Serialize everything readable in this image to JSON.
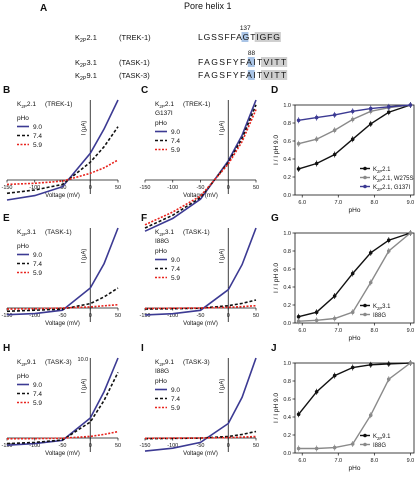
{
  "figure": {
    "panel_a": {
      "letter": "A",
      "title": "Pore helix 1",
      "rows": [
        {
          "channel": "K2P2.1",
          "name": "(TREK-1)",
          "seq_pre": "LGSSFFA",
          "seq_hl": "G",
          "seq_post": "T",
          "seq_box": "IGFG",
          "residue": "137"
        },
        {
          "channel": "K2P3.1",
          "name": "(TASK-1)",
          "seq_pre": "FAGSFYFA",
          "seq_hl": "I",
          "seq_post": "T",
          "seq_box": "VITT",
          "residue": "88"
        },
        {
          "channel": "K2P9.1",
          "name": "(TASK-3)",
          "seq_pre": "FAGSFYFA",
          "seq_hl": "I",
          "seq_post": "T",
          "seq_box": "VITT",
          "residue": ""
        }
      ]
    },
    "colors": {
      "ph9": "#3c3a93",
      "ph74": "#111111",
      "ph59": "#e8231d",
      "wt_line": "#111111",
      "mut_gray": "#8a8a8a",
      "mut_blue": "#3c3a93",
      "highlight": "#a9c4e6",
      "box": "#cfcfcf"
    },
    "legend_ph": {
      "title": "pHo",
      "items": [
        "9.0",
        "7.4",
        "5.9"
      ]
    },
    "iv_panels": [
      {
        "id": "B",
        "title": "K2P2.1 (TREK-1)",
        "subtitle": "",
        "ymax_label": ""
      },
      {
        "id": "C",
        "title": "K2P2.1 (TREK-1)",
        "subtitle": "G137I",
        "ymax_label": ""
      },
      {
        "id": "E",
        "title": "K2P3.1 (TASK-1)",
        "subtitle": "",
        "ymax_label": ""
      },
      {
        "id": "F",
        "title": "K2P3.1 (TASK-1)",
        "subtitle": "I88G",
        "ymax_label": ""
      },
      {
        "id": "H",
        "title": "K2P9.1 (TASK-3)",
        "subtitle": "",
        "ymax_label": "10.0"
      },
      {
        "id": "I",
        "title": "K2P9.1 (TASK-3)",
        "subtitle": "I88G",
        "ymax_label": ""
      }
    ],
    "iv_axis": {
      "xlabel": "Voltage (mV)",
      "ylabel": "I (μA)",
      "xticks": [
        "-150",
        "-100",
        "-50",
        "0",
        "50"
      ]
    },
    "ph_axis": {
      "xlabel": "pHo",
      "ylabel": "I / I pH 9.0",
      "xticks": [
        "6.0",
        "7.0",
        "8.0",
        "9.0"
      ],
      "yticks": [
        "0.0",
        "0.2",
        "0.4",
        "0.6",
        "0.8",
        "1.0"
      ]
    }
  },
  "chart_data": [
    {
      "panel": "B",
      "type": "line",
      "xlabel": "Voltage (mV)",
      "ylabel": "I (μA)",
      "xlim": [
        -150,
        50
      ],
      "series": [
        {
          "name": "9.0",
          "x": [
            -150,
            -100,
            -50,
            0,
            25,
            50
          ],
          "y": [
            -0.9,
            -0.7,
            -0.3,
            1.2,
            2.3,
            3.6
          ]
        },
        {
          "name": "7.4",
          "x": [
            -150,
            -100,
            -50,
            0,
            25,
            50
          ],
          "y": [
            -0.6,
            -0.45,
            -0.2,
            0.8,
            1.5,
            2.4
          ]
        },
        {
          "name": "5.9",
          "x": [
            -150,
            -100,
            -50,
            0,
            25,
            50
          ],
          "y": [
            -0.2,
            -0.15,
            -0.05,
            0.3,
            0.55,
            0.9
          ]
        }
      ]
    },
    {
      "panel": "C",
      "type": "line",
      "xlabel": "Voltage (mV)",
      "ylabel": "I (μA)",
      "xlim": [
        -150,
        50
      ],
      "series": [
        {
          "name": "9.0",
          "x": [
            -150,
            -100,
            -50,
            0,
            25,
            50
          ],
          "y": [
            -1.6,
            -1.2,
            -0.6,
            0.6,
            1.4,
            2.5
          ]
        },
        {
          "name": "7.4",
          "x": [
            -150,
            -100,
            -50,
            0,
            25,
            50
          ],
          "y": [
            -1.5,
            -1.1,
            -0.55,
            0.55,
            1.3,
            2.35
          ]
        },
        {
          "name": "5.9",
          "x": [
            -150,
            -100,
            -50,
            0,
            25,
            50
          ],
          "y": [
            -1.4,
            -1.0,
            -0.5,
            0.5,
            1.2,
            2.2
          ]
        }
      ]
    },
    {
      "panel": "D",
      "type": "line",
      "xlabel": "pHo",
      "ylabel": "I / I pH 9.0",
      "xlim": [
        5.8,
        9.1
      ],
      "ylim": [
        0,
        1.0
      ],
      "series": [
        {
          "name": "K2P2.1",
          "x": [
            5.9,
            6.4,
            6.9,
            7.4,
            7.9,
            8.4,
            9.0
          ],
          "y": [
            0.29,
            0.35,
            0.45,
            0.62,
            0.79,
            0.92,
            1.0
          ]
        },
        {
          "name": "K2P2.1, W275S",
          "x": [
            5.9,
            6.4,
            6.9,
            7.4,
            7.9,
            8.4,
            9.0
          ],
          "y": [
            0.57,
            0.62,
            0.72,
            0.84,
            0.93,
            0.97,
            1.0
          ]
        },
        {
          "name": "K2P2.1, G137I",
          "x": [
            5.9,
            6.4,
            6.9,
            7.4,
            7.9,
            8.4,
            9.0
          ],
          "y": [
            0.83,
            0.86,
            0.89,
            0.93,
            0.96,
            0.98,
            1.0
          ]
        }
      ]
    },
    {
      "panel": "E",
      "type": "line",
      "xlabel": "Voltage (mV)",
      "ylabel": "I (μA)",
      "xlim": [
        -150,
        50
      ],
      "series": [
        {
          "name": "9.0",
          "x": [
            -150,
            -100,
            -50,
            0,
            25,
            50
          ],
          "y": [
            -0.3,
            -0.25,
            -0.1,
            0.9,
            2.0,
            3.6
          ]
        },
        {
          "name": "7.4",
          "x": [
            -150,
            -100,
            -50,
            0,
            25,
            50
          ],
          "y": [
            -0.15,
            -0.1,
            -0.05,
            0.2,
            0.5,
            0.9
          ]
        },
        {
          "name": "5.9",
          "x": [
            -150,
            -100,
            -50,
            0,
            25,
            50
          ],
          "y": [
            -0.05,
            -0.03,
            0,
            0.05,
            0.1,
            0.15
          ]
        }
      ]
    },
    {
      "panel": "F",
      "type": "line",
      "xlabel": "Voltage (mV)",
      "ylabel": "I (μA)",
      "xlim": [
        -150,
        50
      ],
      "series": [
        {
          "name": "9.0",
          "x": [
            -150,
            -100,
            -50,
            0,
            25,
            50
          ],
          "y": [
            -0.3,
            -0.25,
            -0.1,
            0.8,
            1.9,
            3.5
          ]
        },
        {
          "name": "7.4",
          "x": [
            -150,
            -100,
            -50,
            0,
            25,
            50
          ],
          "y": [
            -0.05,
            -0.03,
            -0.01,
            0.1,
            0.2,
            0.35
          ]
        },
        {
          "name": "5.9",
          "x": [
            -150,
            -100,
            -50,
            0,
            25,
            50
          ],
          "y": [
            -0.02,
            -0.01,
            0,
            0.03,
            0.06,
            0.1
          ]
        }
      ]
    },
    {
      "panel": "G",
      "type": "line",
      "xlabel": "pHo",
      "ylabel": "I / I pH 9.0",
      "xlim": [
        5.8,
        9.1
      ],
      "ylim": [
        0,
        1.0
      ],
      "series": [
        {
          "name": "K2P3.1",
          "x": [
            5.9,
            6.4,
            6.9,
            7.4,
            7.9,
            8.4,
            9.0
          ],
          "y": [
            0.07,
            0.12,
            0.3,
            0.55,
            0.78,
            0.92,
            1.0
          ]
        },
        {
          "name": "I88G",
          "x": [
            5.9,
            6.4,
            6.9,
            7.4,
            7.9,
            8.4,
            9.0
          ],
          "y": [
            0.02,
            0.03,
            0.05,
            0.12,
            0.45,
            0.8,
            1.0
          ]
        }
      ]
    },
    {
      "panel": "H",
      "type": "line",
      "xlabel": "Voltage (mV)",
      "ylabel": "I (μA)",
      "xlim": [
        -150,
        50
      ],
      "series": [
        {
          "name": "9.0",
          "x": [
            -150,
            -100,
            -50,
            0,
            25,
            50
          ],
          "y": [
            -0.9,
            -0.7,
            -0.3,
            2.5,
            5.8,
            10.0
          ]
        },
        {
          "name": "7.4",
          "x": [
            -150,
            -100,
            -50,
            0,
            25,
            50
          ],
          "y": [
            -0.7,
            -0.55,
            -0.25,
            2.0,
            4.7,
            8.2
          ]
        },
        {
          "name": "5.9",
          "x": [
            -150,
            -100,
            -50,
            0,
            25,
            50
          ],
          "y": [
            -0.1,
            -0.08,
            -0.03,
            0.2,
            0.45,
            0.8
          ]
        }
      ]
    },
    {
      "panel": "I",
      "type": "line",
      "xlabel": "Voltage (mV)",
      "ylabel": "I (μA)",
      "xlim": [
        -150,
        50
      ],
      "series": [
        {
          "name": "9.0",
          "x": [
            -150,
            -100,
            -50,
            0,
            25,
            50
          ],
          "y": [
            -0.9,
            -0.7,
            -0.3,
            1.0,
            2.8,
            5.5
          ]
        },
        {
          "name": "7.4",
          "x": [
            -150,
            -100,
            -50,
            0,
            25,
            50
          ],
          "y": [
            -0.05,
            -0.03,
            -0.01,
            0.1,
            0.25,
            0.45
          ]
        },
        {
          "name": "5.9",
          "x": [
            -150,
            -100,
            -50,
            0,
            25,
            50
          ],
          "y": [
            -0.02,
            -0.01,
            0,
            0.03,
            0.06,
            0.1
          ]
        }
      ]
    },
    {
      "panel": "J",
      "type": "line",
      "xlabel": "pHo",
      "ylabel": "I / I pH 9.0",
      "xlim": [
        5.8,
        9.1
      ],
      "ylim": [
        0,
        1.0
      ],
      "series": [
        {
          "name": "K2P9.1",
          "x": [
            5.9,
            6.4,
            6.9,
            7.4,
            7.9,
            8.4,
            9.0
          ],
          "y": [
            0.43,
            0.68,
            0.86,
            0.95,
            0.98,
            0.99,
            1.0
          ]
        },
        {
          "name": "I88G",
          "x": [
            5.9,
            6.4,
            6.9,
            7.4,
            7.9,
            8.4,
            9.0
          ],
          "y": [
            0.05,
            0.05,
            0.06,
            0.1,
            0.42,
            0.82,
            1.0
          ]
        }
      ]
    }
  ]
}
